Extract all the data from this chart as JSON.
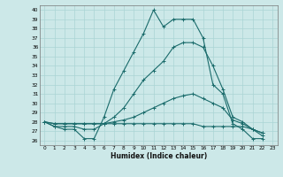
{
  "xlabel": "Humidex (Indice chaleur)",
  "bg_color": "#cce8e8",
  "line_color": "#1a6b6b",
  "grid_color": "#aad4d4",
  "ylim": [
    25.5,
    40.5
  ],
  "xlim": [
    -0.5,
    23.5
  ],
  "yticks": [
    26,
    27,
    28,
    29,
    30,
    31,
    32,
    33,
    34,
    35,
    36,
    37,
    38,
    39,
    40
  ],
  "xticks": [
    0,
    1,
    2,
    3,
    4,
    5,
    6,
    7,
    8,
    9,
    10,
    11,
    12,
    13,
    14,
    15,
    16,
    17,
    18,
    19,
    20,
    21,
    22,
    23
  ],
  "lines": [
    [
      28,
      27.5,
      27.2,
      27.2,
      26.2,
      26.2,
      28.5,
      31.5,
      33.5,
      35.5,
      37.5,
      40,
      38.2,
      39,
      39,
      39,
      37,
      32,
      31,
      27.8,
      27.2,
      26.2,
      26.2
    ],
    [
      28,
      27.5,
      27.5,
      27.5,
      27.2,
      27.2,
      27.8,
      28.5,
      29.5,
      31,
      32.5,
      33.5,
      34.5,
      36,
      36.5,
      36.5,
      36,
      34,
      31.5,
      28.5,
      28,
      27.2,
      26.8
    ],
    [
      28,
      27.8,
      27.8,
      27.8,
      27.8,
      27.8,
      27.8,
      28,
      28.2,
      28.5,
      29,
      29.5,
      30,
      30.5,
      30.8,
      31,
      30.5,
      30,
      29.5,
      28.2,
      27.8,
      27.2,
      26.8
    ],
    [
      28,
      27.8,
      27.8,
      27.8,
      27.8,
      27.8,
      27.8,
      27.8,
      27.8,
      27.8,
      27.8,
      27.8,
      27.8,
      27.8,
      27.8,
      27.8,
      27.5,
      27.5,
      27.5,
      27.5,
      27.5,
      27.2,
      26.5
    ]
  ]
}
